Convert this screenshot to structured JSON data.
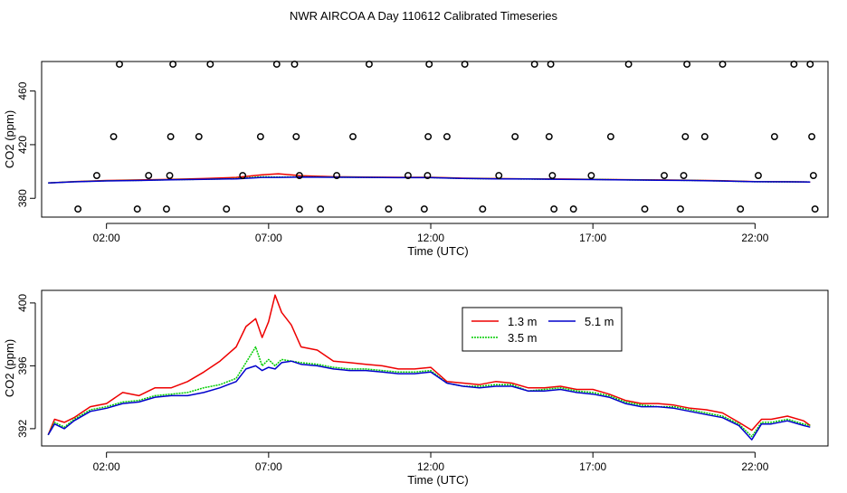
{
  "title": "NWR AIRCOA A  Day 110612  Calibrated Timeseries",
  "chart_data": [
    {
      "type": "scatter",
      "xlabel": "Time (UTC)",
      "ylabel": "CO2 (ppm)",
      "xlim": [
        0,
        24.25
      ],
      "ylim": [
        366,
        482
      ],
      "xticks": [
        2,
        7,
        12,
        17,
        22
      ],
      "xtick_labels": [
        "02:00",
        "07:00",
        "12:00",
        "17:00",
        "22:00"
      ],
      "yticks": [
        380,
        420,
        460
      ],
      "ytick_labels": [
        "380",
        "420",
        "460"
      ],
      "points": [
        [
          1.12,
          372
        ],
        [
          1.7,
          397
        ],
        [
          2.22,
          426
        ],
        [
          2.4,
          480
        ],
        [
          2.95,
          372
        ],
        [
          3.3,
          397
        ],
        [
          3.85,
          372
        ],
        [
          3.95,
          397
        ],
        [
          3.98,
          426
        ],
        [
          4.05,
          480
        ],
        [
          4.85,
          426
        ],
        [
          5.2,
          480
        ],
        [
          5.7,
          372
        ],
        [
          6.2,
          397
        ],
        [
          6.75,
          426
        ],
        [
          7.25,
          480
        ],
        [
          7.8,
          480
        ],
        [
          7.85,
          426
        ],
        [
          7.95,
          397
        ],
        [
          7.95,
          372
        ],
        [
          8.6,
          372
        ],
        [
          9.1,
          397
        ],
        [
          9.6,
          426
        ],
        [
          10.1,
          480
        ],
        [
          10.7,
          372
        ],
        [
          11.3,
          397
        ],
        [
          11.8,
          372
        ],
        [
          11.9,
          397
        ],
        [
          11.92,
          426
        ],
        [
          11.95,
          480
        ],
        [
          12.5,
          426
        ],
        [
          13.05,
          480
        ],
        [
          13.6,
          372
        ],
        [
          14.1,
          397
        ],
        [
          14.6,
          426
        ],
        [
          15.2,
          480
        ],
        [
          15.65,
          426
        ],
        [
          15.7,
          480
        ],
        [
          15.75,
          397
        ],
        [
          15.8,
          372
        ],
        [
          16.4,
          372
        ],
        [
          16.95,
          397
        ],
        [
          17.55,
          426
        ],
        [
          18.1,
          480
        ],
        [
          18.6,
          372
        ],
        [
          19.2,
          397
        ],
        [
          19.7,
          372
        ],
        [
          19.8,
          397
        ],
        [
          19.85,
          426
        ],
        [
          19.9,
          480
        ],
        [
          20.45,
          426
        ],
        [
          21.0,
          480
        ],
        [
          21.55,
          372
        ],
        [
          22.1,
          397
        ],
        [
          22.6,
          426
        ],
        [
          23.2,
          480
        ],
        [
          23.7,
          480
        ],
        [
          23.75,
          426
        ],
        [
          23.8,
          397
        ],
        [
          23.85,
          372
        ]
      ],
      "series": [
        {
          "name": "1.3 m",
          "color": "#ee0000",
          "x": [
            0.2,
            1,
            2,
            3,
            4,
            5,
            6,
            6.8,
            7.3,
            8,
            9,
            10,
            11,
            12,
            13,
            14,
            15,
            16,
            17,
            18,
            19,
            20,
            21,
            22,
            23,
            23.7
          ],
          "y": [
            391.5,
            392.5,
            393.3,
            393.7,
            394.2,
            394.7,
            395.6,
            397.5,
            398.3,
            396.8,
            396.1,
            395.9,
            395.7,
            395.7,
            395.0,
            394.7,
            394.5,
            394.4,
            394.2,
            393.9,
            393.7,
            393.5,
            393.1,
            392.5,
            392.4,
            392.2
          ]
        },
        {
          "name": "3.5 m",
          "color": "#00cc00",
          "x": [
            0.2,
            1,
            2,
            3,
            4,
            5,
            6,
            6.8,
            7.3,
            8,
            9,
            10,
            11,
            12,
            13,
            14,
            15,
            16,
            17,
            18,
            19,
            20,
            21,
            22,
            23,
            23.7
          ],
          "y": [
            391.5,
            392.4,
            393.1,
            393.4,
            393.9,
            394.2,
            394.7,
            396.1,
            395.8,
            396.0,
            395.8,
            395.7,
            395.5,
            395.5,
            394.8,
            394.6,
            394.4,
            394.2,
            394.1,
            393.8,
            393.6,
            393.4,
            393.0,
            392.4,
            392.3,
            392.2
          ]
        },
        {
          "name": "5.1 m",
          "color": "#0000cc",
          "x": [
            0.2,
            1,
            2,
            3,
            4,
            5,
            6,
            6.8,
            7.3,
            8,
            9,
            10,
            11,
            12,
            13,
            14,
            15,
            16,
            17,
            18,
            19,
            20,
            21,
            22,
            23,
            23.7
          ],
          "y": [
            391.5,
            392.3,
            393.0,
            393.3,
            393.8,
            394.1,
            394.5,
            395.6,
            395.6,
            395.9,
            395.7,
            395.6,
            395.4,
            395.4,
            394.8,
            394.5,
            394.4,
            394.2,
            394.0,
            393.7,
            393.5,
            393.3,
            392.9,
            392.4,
            392.3,
            392.2
          ]
        }
      ]
    },
    {
      "type": "line",
      "xlabel": "Time (UTC)",
      "ylabel": "CO2 (ppm)",
      "xlim": [
        0,
        24.25
      ],
      "ylim": [
        390.9,
        400.8
      ],
      "xticks": [
        2,
        7,
        12,
        17,
        22
      ],
      "xtick_labels": [
        "02:00",
        "07:00",
        "12:00",
        "17:00",
        "22:00"
      ],
      "yticks": [
        392,
        396,
        400
      ],
      "ytick_labels": [
        "392",
        "396",
        "400"
      ],
      "legend": {
        "placement": "top-center",
        "entries": [
          "1.3 m",
          "5.1 m",
          "3.5 m"
        ]
      },
      "series": [
        {
          "name": "1.3 m",
          "color": "#ee0000",
          "x": [
            0.2,
            0.4,
            0.7,
            1.0,
            1.5,
            2.0,
            2.5,
            3.0,
            3.5,
            4.0,
            4.5,
            5.0,
            5.5,
            6.0,
            6.3,
            6.6,
            6.8,
            7.0,
            7.2,
            7.4,
            7.7,
            8.0,
            8.5,
            9.0,
            9.5,
            10.0,
            10.5,
            11.0,
            11.5,
            12.0,
            12.5,
            13.0,
            13.5,
            14.0,
            14.5,
            15.0,
            15.5,
            16.0,
            16.5,
            17.0,
            17.5,
            18.0,
            18.5,
            19.0,
            19.5,
            20.0,
            20.5,
            21.0,
            21.5,
            21.9,
            22.2,
            22.5,
            23.0,
            23.5,
            23.7
          ],
          "y": [
            391.6,
            392.6,
            392.4,
            392.7,
            393.4,
            393.6,
            394.3,
            394.1,
            394.6,
            394.6,
            395.0,
            395.6,
            396.3,
            397.2,
            398.5,
            399.0,
            397.8,
            398.8,
            400.5,
            399.4,
            398.6,
            397.2,
            397.0,
            396.3,
            396.2,
            396.1,
            396.0,
            395.8,
            395.8,
            395.9,
            395.0,
            394.9,
            394.8,
            395.0,
            394.9,
            394.6,
            394.6,
            394.7,
            394.5,
            394.5,
            394.2,
            393.8,
            393.6,
            393.6,
            393.5,
            393.3,
            393.2,
            393.0,
            392.4,
            391.9,
            392.6,
            392.6,
            392.8,
            392.5,
            392.2
          ]
        },
        {
          "name": "3.5 m",
          "color": "#00cc00",
          "x": [
            0.2,
            0.4,
            0.7,
            1.0,
            1.5,
            2.0,
            2.5,
            3.0,
            3.5,
            4.0,
            4.5,
            5.0,
            5.5,
            6.0,
            6.3,
            6.6,
            6.8,
            7.0,
            7.2,
            7.4,
            7.7,
            8.0,
            8.5,
            9.0,
            9.5,
            10.0,
            10.5,
            11.0,
            11.5,
            12.0,
            12.5,
            13.0,
            13.5,
            14.0,
            14.5,
            15.0,
            15.5,
            16.0,
            16.5,
            17.0,
            17.5,
            18.0,
            18.5,
            19.0,
            19.5,
            20.0,
            20.5,
            21.0,
            21.5,
            21.9,
            22.2,
            22.5,
            23.0,
            23.5,
            23.7
          ],
          "y": [
            391.6,
            392.4,
            392.1,
            392.6,
            393.2,
            393.4,
            393.7,
            393.8,
            394.1,
            394.2,
            394.3,
            394.6,
            394.8,
            395.2,
            396.2,
            397.2,
            396.0,
            396.4,
            396.0,
            396.4,
            396.3,
            396.2,
            396.1,
            395.9,
            395.8,
            395.8,
            395.7,
            395.6,
            395.6,
            395.7,
            394.9,
            394.7,
            394.7,
            394.8,
            394.8,
            394.4,
            394.5,
            394.6,
            394.4,
            394.3,
            394.1,
            393.7,
            393.5,
            393.4,
            393.4,
            393.2,
            393.0,
            392.8,
            392.3,
            391.5,
            392.4,
            392.4,
            392.6,
            392.3,
            392.2
          ]
        },
        {
          "name": "5.1 m",
          "color": "#0000cc",
          "x": [
            0.2,
            0.4,
            0.7,
            1.0,
            1.5,
            2.0,
            2.5,
            3.0,
            3.5,
            4.0,
            4.5,
            5.0,
            5.5,
            6.0,
            6.3,
            6.6,
            6.8,
            7.0,
            7.2,
            7.4,
            7.7,
            8.0,
            8.5,
            9.0,
            9.5,
            10.0,
            10.5,
            11.0,
            11.5,
            12.0,
            12.5,
            13.0,
            13.5,
            14.0,
            14.5,
            15.0,
            15.5,
            16.0,
            16.5,
            17.0,
            17.5,
            18.0,
            18.5,
            19.0,
            19.5,
            20.0,
            20.5,
            21.0,
            21.5,
            21.9,
            22.2,
            22.5,
            23.0,
            23.5,
            23.7
          ],
          "y": [
            391.6,
            392.3,
            392.0,
            392.5,
            393.1,
            393.3,
            393.6,
            393.7,
            394.0,
            394.1,
            394.1,
            394.3,
            394.6,
            395.0,
            395.8,
            396.0,
            395.7,
            395.9,
            395.8,
            396.2,
            396.3,
            396.1,
            396.0,
            395.8,
            395.7,
            395.7,
            395.6,
            395.5,
            395.5,
            395.6,
            394.9,
            394.7,
            394.6,
            394.7,
            394.7,
            394.4,
            394.4,
            394.5,
            394.3,
            394.2,
            394.0,
            393.6,
            393.4,
            393.4,
            393.3,
            393.1,
            392.9,
            392.7,
            392.2,
            391.3,
            392.3,
            392.3,
            392.5,
            392.2,
            392.1
          ]
        }
      ]
    }
  ]
}
